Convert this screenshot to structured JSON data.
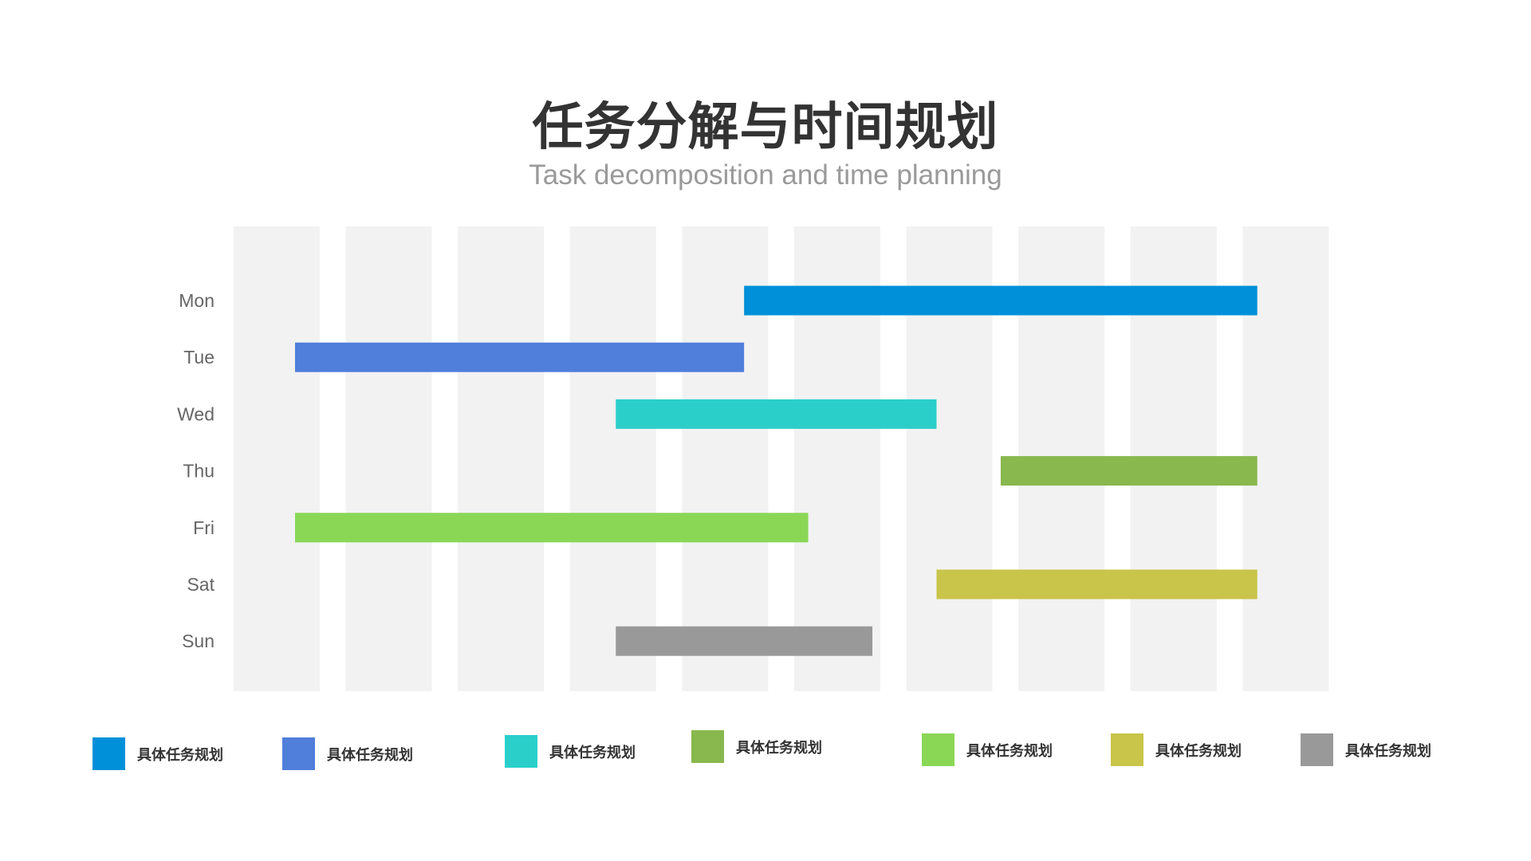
{
  "title": "任务分解与时间规划",
  "subtitle": "Task decomposition and time planning",
  "chart_data": {
    "type": "gantt",
    "title": "任务分解与时间规划",
    "subtitle": "Task decomposition and time planning",
    "categories": [
      "Mon",
      "Tue",
      "Wed",
      "Thu",
      "Fri",
      "Sat",
      "Sun"
    ],
    "xlim": [
      0,
      15
    ],
    "tasks": [
      {
        "day": "Mon",
        "start": 7,
        "end": 15,
        "color": "#0090d9"
      },
      {
        "day": "Tue",
        "start": 0,
        "end": 7,
        "color": "#4f7edb"
      },
      {
        "day": "Wed",
        "start": 5,
        "end": 10,
        "color": "#2bcfca"
      },
      {
        "day": "Thu",
        "start": 11,
        "end": 15,
        "color": "#88b84e"
      },
      {
        "day": "Fri",
        "start": 0,
        "end": 8,
        "color": "#8ad756"
      },
      {
        "day": "Sat",
        "start": 10,
        "end": 15,
        "color": "#c9c44a"
      },
      {
        "day": "Sun",
        "start": 5,
        "end": 9,
        "color": "#999999"
      }
    ],
    "grid": "alternating vertical bands",
    "band_color": "#f2f2f2"
  },
  "legend": [
    {
      "label": "具体任务规划",
      "color": "#0090d9"
    },
    {
      "label": "具体任务规划",
      "color": "#4f7edb"
    },
    {
      "label": "具体任务规划",
      "color": "#2bcfca"
    },
    {
      "label": "具体任务规划",
      "color": "#88b84e"
    },
    {
      "label": "具体任务规划",
      "color": "#8ad756"
    },
    {
      "label": "具体任务规划",
      "color": "#c9c44a"
    },
    {
      "label": "具体任务规划",
      "color": "#999999"
    }
  ]
}
